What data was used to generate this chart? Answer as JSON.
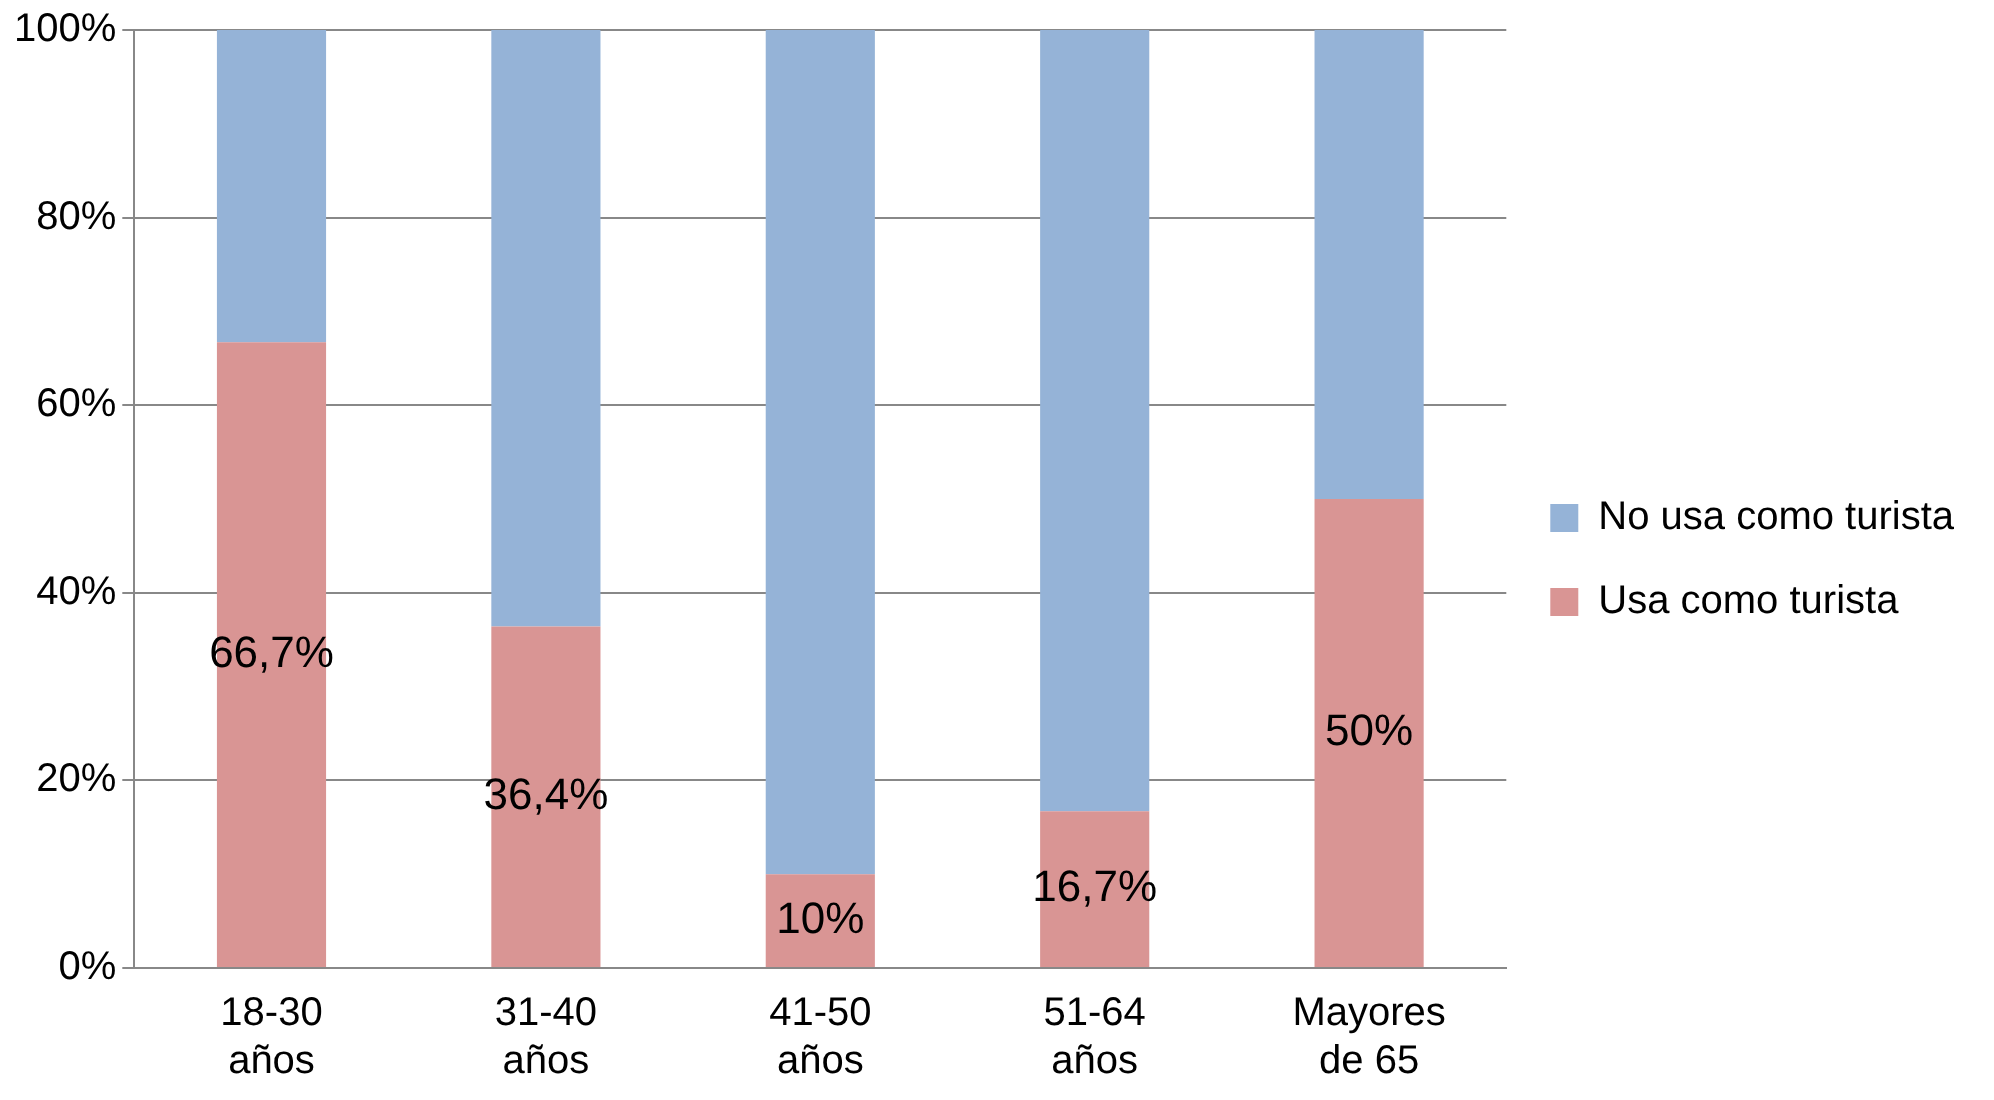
{
  "chart_data": {
    "type": "bar",
    "stacked": true,
    "categories": [
      "18-30 años",
      "31-40 años",
      "41-50 años",
      "51-64 años",
      "Mayores de 65"
    ],
    "series": [
      {
        "name": "Usa como turista",
        "color": "#d99594",
        "values": [
          66.7,
          36.4,
          10,
          16.7,
          50
        ],
        "value_labels": [
          "66,7%",
          "36,4%",
          "10%",
          "16,7%",
          "50%"
        ]
      },
      {
        "name": "No usa como turista",
        "color": "#95b3d7",
        "values": [
          33.3,
          63.6,
          90,
          83.3,
          50
        ]
      }
    ],
    "ylim": [
      0,
      100
    ],
    "yticks": [
      {
        "value": 0,
        "label": "0%"
      },
      {
        "value": 20,
        "label": "20%"
      },
      {
        "value": 40,
        "label": "40%"
      },
      {
        "value": 60,
        "label": "60%"
      },
      {
        "value": 80,
        "label": "80%"
      },
      {
        "value": 100,
        "label": "100%"
      }
    ],
    "grid": "y",
    "legend": "right"
  }
}
